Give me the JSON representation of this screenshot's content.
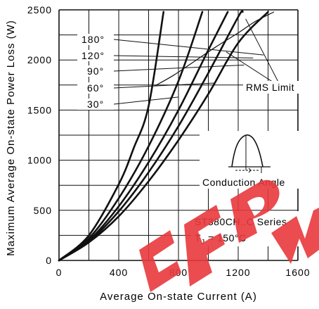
{
  "chart_data": {
    "type": "line",
    "xlabel": "Average On-state Current (A)",
    "ylabel": "Maximum Average On-state Power Loss (W)",
    "xlim": [
      0,
      1600
    ],
    "ylim": [
      0,
      2500
    ],
    "x_ticks": [
      0,
      400,
      800,
      1200,
      1600
    ],
    "y_ticks": [
      0,
      500,
      1000,
      1500,
      2000,
      2500
    ],
    "grid": true,
    "series": [
      {
        "name": "30°",
        "points": [
          [
            0,
            0
          ],
          [
            200,
            250
          ],
          [
            400,
            760
          ],
          [
            500,
            1120
          ],
          [
            600,
            1540
          ],
          [
            700,
            2480
          ]
        ]
      },
      {
        "name": "60°",
        "points": [
          [
            0,
            0
          ],
          [
            200,
            220
          ],
          [
            400,
            620
          ],
          [
            600,
            1140
          ],
          [
            800,
            1790
          ],
          [
            960,
            2480
          ]
        ]
      },
      {
        "name": "90°",
        "points": [
          [
            0,
            0
          ],
          [
            200,
            200
          ],
          [
            400,
            540
          ],
          [
            600,
            980
          ],
          [
            800,
            1500
          ],
          [
            1000,
            2100
          ],
          [
            1130,
            2480
          ]
        ]
      },
      {
        "name": "120°",
        "points": [
          [
            0,
            0
          ],
          [
            200,
            190
          ],
          [
            400,
            490
          ],
          [
            600,
            880
          ],
          [
            800,
            1340
          ],
          [
            1000,
            1870
          ],
          [
            1200,
            2430
          ],
          [
            1230,
            2480
          ]
        ]
      },
      {
        "name": "180°",
        "points": [
          [
            0,
            0
          ],
          [
            200,
            180
          ],
          [
            400,
            440
          ],
          [
            600,
            790
          ],
          [
            800,
            1200
          ],
          [
            1000,
            1660
          ],
          [
            1200,
            2170
          ],
          [
            1400,
            2480
          ]
        ]
      }
    ],
    "rms_limit": {
      "label": "RMS Limit",
      "points": [
        [
          640,
          1740
        ],
        [
          770,
          1850
        ],
        [
          920,
          2000
        ],
        [
          1050,
          2130
        ],
        [
          1210,
          2280
        ],
        [
          1310,
          2380
        ],
        [
          1440,
          2480
        ]
      ]
    },
    "label_lines": [
      {
        "to": [
          1370,
          2050
        ]
      },
      {
        "to": [
          1300,
          2020
        ]
      },
      {
        "to": [
          1240,
          1950
        ]
      },
      {
        "to": [
          1040,
          1770
        ]
      },
      {
        "to": [
          800,
          1630
        ]
      }
    ],
    "rms_label_lines": [
      {
        "from": [
          1250,
          2410
        ]
      },
      {
        "from": [
          1120,
          2080
        ]
      }
    ],
    "inset": {
      "caption": "Conduction Angle",
      "series_label": "ST380CH..C Series",
      "tj_label": "TJ = 150°C",
      "tj_prefix": "T",
      "tj_sub": "J",
      "tj_value": " = 150°C"
    }
  }
}
